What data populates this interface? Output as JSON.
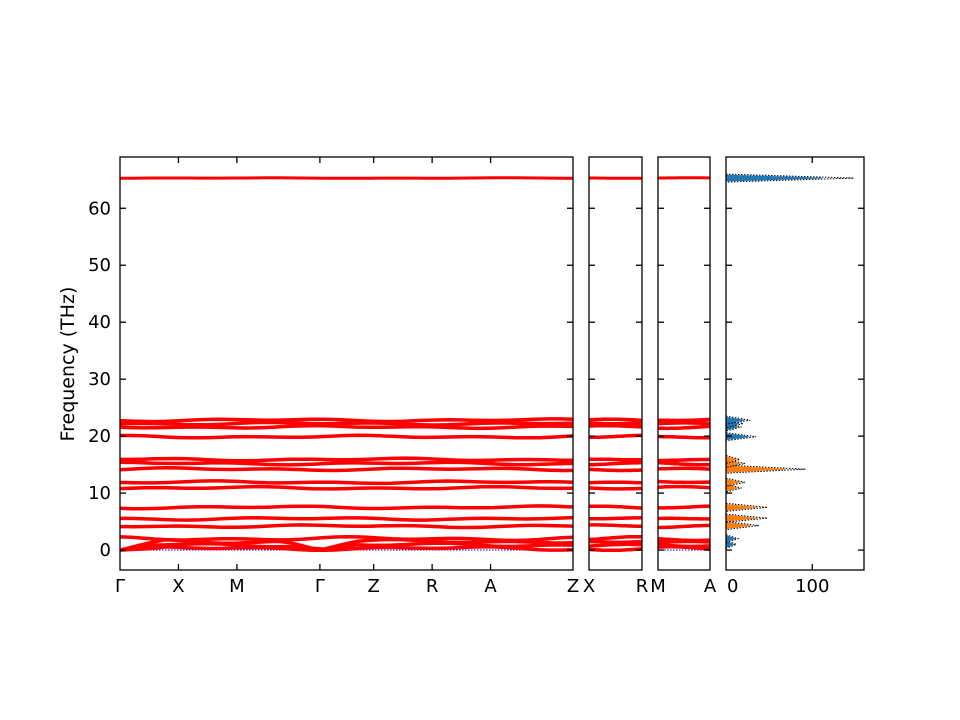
{
  "chart_data": {
    "type": "line",
    "ylabel": "Frequency (THz)",
    "ylim": [
      -3.5,
      69
    ],
    "yticks": [
      0,
      10,
      20,
      30,
      40,
      50,
      60
    ],
    "colors": {
      "bands": "#ff0000",
      "zero_line": "#0000ff",
      "dos_total": "#000000",
      "dos_blue": "#1f77b4",
      "dos_orange": "#ff7f0e"
    },
    "band_levels": [
      0.3,
      0.9,
      1.5,
      2.0,
      4.2,
      5.5,
      7.5,
      10.9,
      11.9,
      14.2,
      15.2,
      15.9,
      19.9,
      21.6,
      22.2,
      22.8,
      65.3
    ],
    "panels": [
      {
        "labels": [
          "Γ",
          "X",
          "M",
          "Γ",
          "Z",
          "R",
          "A",
          "Z"
        ],
        "xlim": [
          0,
          7.75
        ],
        "tick_positions": [
          0,
          1,
          2,
          3.42,
          4.34,
          5.34,
          6.34,
          7.75
        ]
      },
      {
        "labels": [
          "X",
          "R"
        ],
        "xlim": [
          0,
          1
        ],
        "tick_positions": [
          0,
          1
        ]
      },
      {
        "labels": [
          "M",
          "A"
        ],
        "xlim": [
          0,
          1
        ],
        "tick_positions": [
          0,
          1
        ]
      }
    ],
    "dos": {
      "xlim": [
        0,
        160
      ],
      "xticks": [
        0,
        100
      ],
      "xticklabels": [
        "0",
        "100"
      ],
      "peaks": [
        {
          "freq": 1.0,
          "total": 12,
          "color": "blue"
        },
        {
          "freq": 2.0,
          "total": 14,
          "color": "blue"
        },
        {
          "freq": 4.3,
          "total": 38,
          "color": "orange"
        },
        {
          "freq": 5.6,
          "total": 48,
          "color": "orange"
        },
        {
          "freq": 7.5,
          "total": 48,
          "color": "orange"
        },
        {
          "freq": 10.9,
          "total": 18,
          "color": "orange"
        },
        {
          "freq": 11.9,
          "total": 22,
          "color": "orange"
        },
        {
          "freq": 14.2,
          "total": 92,
          "color": "orange"
        },
        {
          "freq": 15.2,
          "total": 22,
          "color": "orange"
        },
        {
          "freq": 15.9,
          "total": 16,
          "color": "orange"
        },
        {
          "freq": 19.9,
          "total": 35,
          "color": "blue"
        },
        {
          "freq": 21.6,
          "total": 18,
          "color": "blue"
        },
        {
          "freq": 22.2,
          "total": 20,
          "color": "blue"
        },
        {
          "freq": 22.8,
          "total": 28,
          "color": "blue"
        },
        {
          "freq": 65.3,
          "total": 148,
          "color": "blue"
        }
      ]
    }
  }
}
